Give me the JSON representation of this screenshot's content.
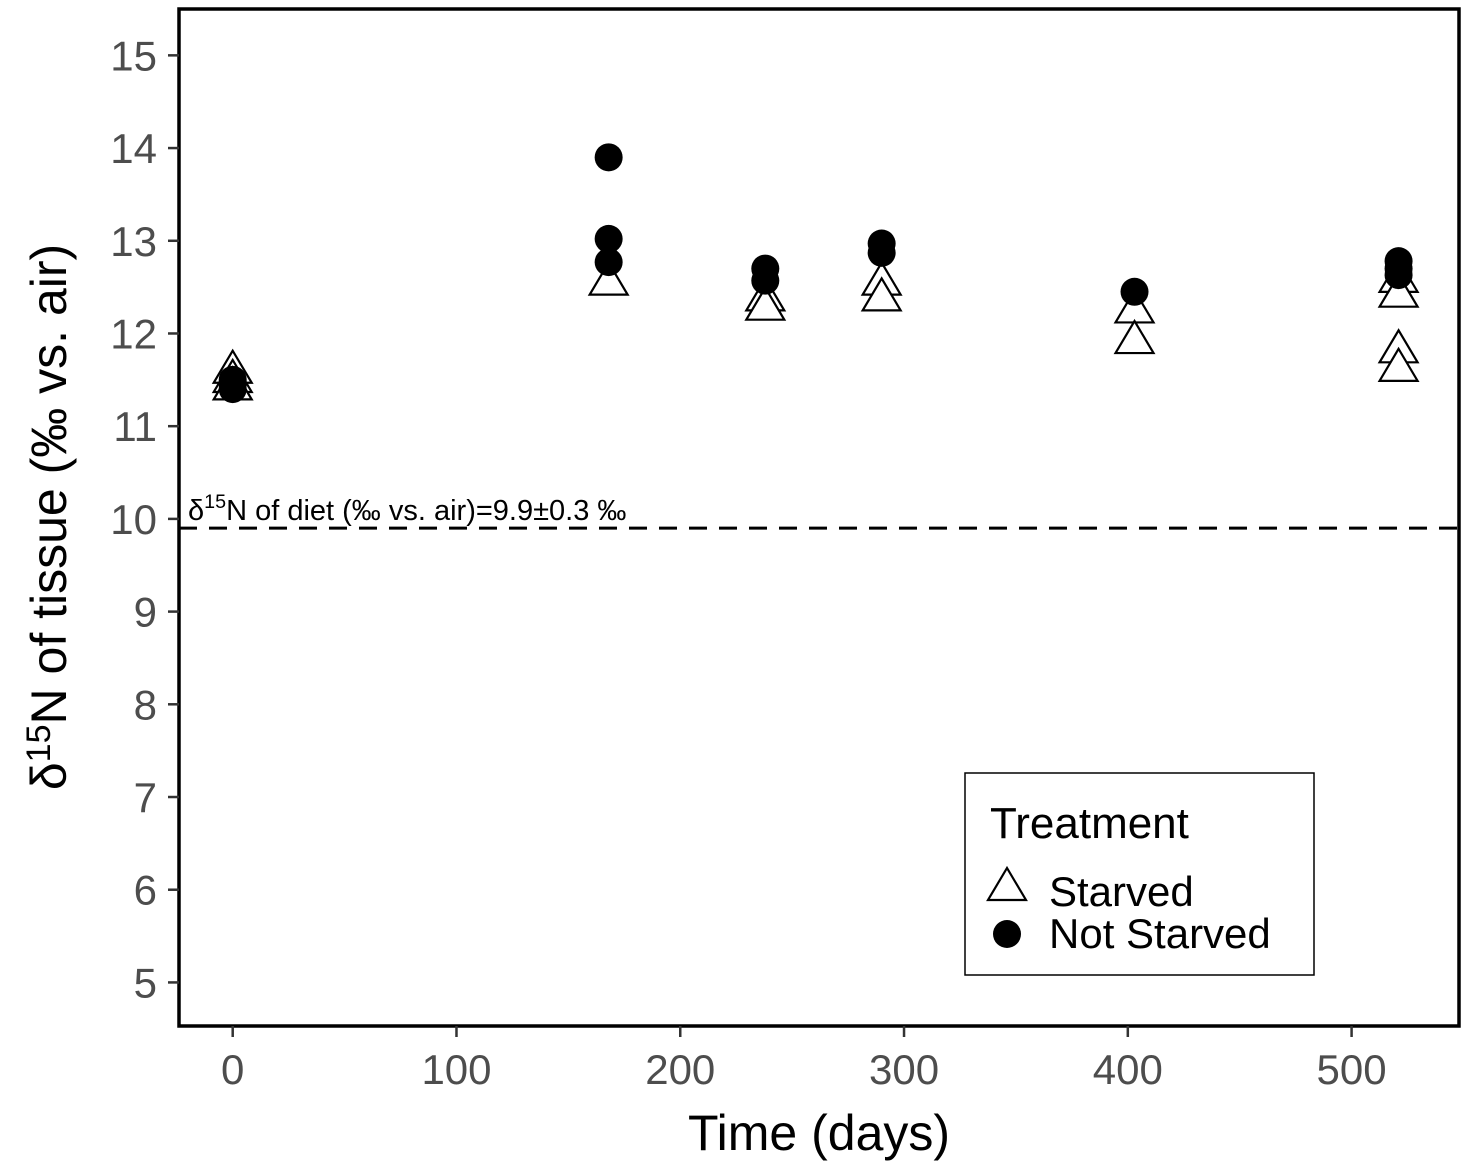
{
  "chart_data": {
    "type": "scatter",
    "title": "",
    "xlabel": "Time (days)",
    "ylabel": {
      "prefix": "δ",
      "superscript": "15",
      "rest": "N of tissue (‰ vs. air)"
    },
    "xlim": [
      -24,
      548
    ],
    "ylim": [
      4.53,
      15.5
    ],
    "x_ticks": [
      0,
      100,
      200,
      300,
      400,
      500
    ],
    "y_ticks": [
      5,
      6,
      7,
      8,
      9,
      10,
      11,
      12,
      13,
      14,
      15
    ],
    "grid": false,
    "series": [
      {
        "name": "Starved",
        "marker": "open-triangle",
        "points": [
          {
            "x": 0,
            "y": 11.6
          },
          {
            "x": 0,
            "y": 11.5
          },
          {
            "x": 0,
            "y": 11.42
          },
          {
            "x": 168,
            "y": 12.55
          },
          {
            "x": 238,
            "y": 12.38
          },
          {
            "x": 238,
            "y": 12.28
          },
          {
            "x": 290,
            "y": 12.55
          },
          {
            "x": 290,
            "y": 12.38
          },
          {
            "x": 403,
            "y": 12.25
          },
          {
            "x": 403,
            "y": 11.92
          },
          {
            "x": 521,
            "y": 12.58
          },
          {
            "x": 521,
            "y": 12.42
          },
          {
            "x": 521,
            "y": 11.82
          },
          {
            "x": 521,
            "y": 11.62
          }
        ]
      },
      {
        "name": "Not Starved",
        "marker": "filled-circle",
        "points": [
          {
            "x": 0,
            "y": 11.5
          },
          {
            "x": 0,
            "y": 11.45
          },
          {
            "x": 0,
            "y": 11.4
          },
          {
            "x": 168,
            "y": 13.9
          },
          {
            "x": 168,
            "y": 13.02
          },
          {
            "x": 168,
            "y": 12.77
          },
          {
            "x": 238,
            "y": 12.7
          },
          {
            "x": 238,
            "y": 12.57
          },
          {
            "x": 290,
            "y": 12.97
          },
          {
            "x": 290,
            "y": 12.87
          },
          {
            "x": 403,
            "y": 12.45
          },
          {
            "x": 521,
            "y": 12.78
          },
          {
            "x": 521,
            "y": 12.7
          },
          {
            "x": 521,
            "y": 12.63
          }
        ]
      }
    ],
    "reference_line": {
      "y": 9.9,
      "style": "dashed",
      "label": {
        "prefix": "δ",
        "superscript": "15",
        "rest": "N of diet (‰ vs. air)=9.9±0.3 ‰"
      }
    },
    "legend": {
      "title": "Treatment",
      "position": "bottom-right",
      "entries": [
        {
          "label": "Starved",
          "marker": "open-triangle"
        },
        {
          "label": "Not Starved",
          "marker": "filled-circle"
        }
      ]
    }
  },
  "colors": {
    "ink": "#000000",
    "tick_text": "#4d4d4d",
    "background": "#ffffff"
  }
}
